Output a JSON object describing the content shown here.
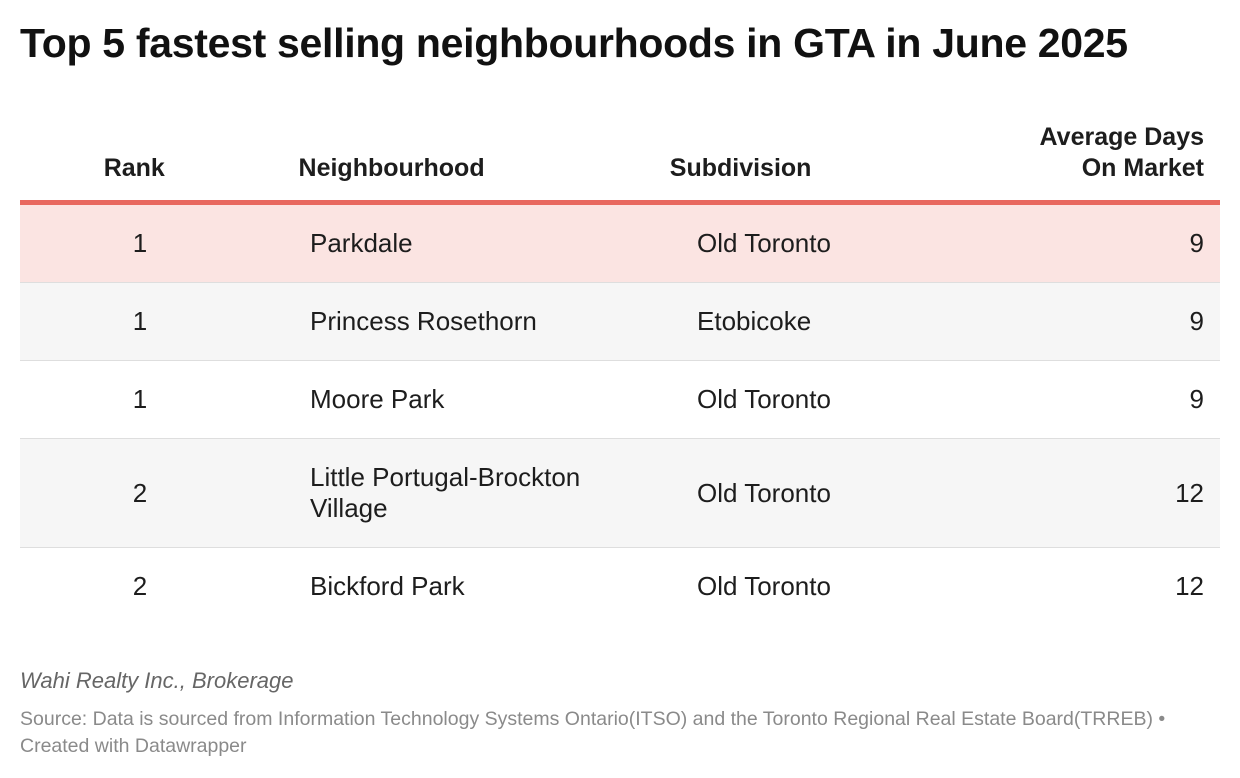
{
  "header": {
    "title": "Top 5 fastest selling neighbourhoods in GTA in June 2025"
  },
  "table": {
    "columns": [
      "Rank",
      "Neighbourhood",
      "Subdivision",
      "Average Days On Market"
    ],
    "rows": [
      [
        1,
        "Parkdale",
        "Old Toronto",
        9
      ],
      [
        1,
        "Princess Rosethorn",
        "Etobicoke",
        9
      ],
      [
        1,
        "Moore Park",
        "Old Toronto",
        9
      ],
      [
        2,
        "Little Portugal-Brockton Village",
        "Old Toronto",
        12
      ],
      [
        2,
        "Bickford Park",
        "Old Toronto",
        12
      ]
    ]
  },
  "footer": {
    "byline": "Wahi Realty Inc., Brokerage",
    "source": "Source: Data is sourced from Information Technology Systems Ontario(ITSO) and the Toronto Regional Real Estate Board(TRREB) • Created with Datawrapper"
  }
}
